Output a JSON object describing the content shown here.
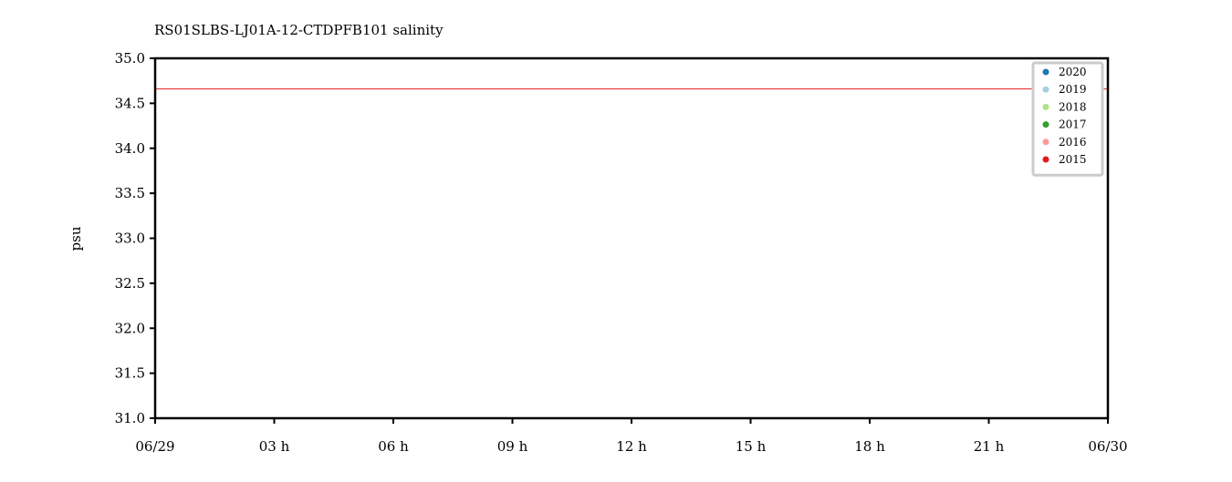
{
  "chart_data": {
    "type": "line",
    "title": "RS01SLBS-LJ01A-12-CTDPFB101 salinity",
    "xlabel": "",
    "ylabel": "psu",
    "x_range": [
      "06/29 00:00",
      "06/30 00:00"
    ],
    "x_ticks": [
      {
        "label": "06/29",
        "hour": 0
      },
      {
        "label": "03 h",
        "hour": 3
      },
      {
        "label": "06 h",
        "hour": 6
      },
      {
        "label": "09 h",
        "hour": 9
      },
      {
        "label": "12 h",
        "hour": 12
      },
      {
        "label": "15 h",
        "hour": 15
      },
      {
        "label": "18 h",
        "hour": 18
      },
      {
        "label": "21 h",
        "hour": 21
      },
      {
        "label": "06/30",
        "hour": 24
      }
    ],
    "ylim": [
      31.0,
      35.0
    ],
    "y_ticks": [
      "31.0",
      "31.5",
      "32.0",
      "32.5",
      "33.0",
      "33.5",
      "34.0",
      "34.5",
      "35.0"
    ],
    "grid": false,
    "legend_position": "top-right",
    "series": [
      {
        "name": "2020",
        "color": "#1f78b4",
        "points": []
      },
      {
        "name": "2019",
        "color": "#a6cee3",
        "points": []
      },
      {
        "name": "2018",
        "color": "#b2df8a",
        "points": []
      },
      {
        "name": "2017",
        "color": "#33a02c",
        "points": []
      },
      {
        "name": "2016",
        "color": "#fb9a99",
        "points": []
      },
      {
        "name": "2015",
        "color": "#e31a1c",
        "points": [
          {
            "hour": 0.0,
            "value": 34.66
          },
          {
            "hour": 3.0,
            "value": 34.66
          },
          {
            "hour": 6.0,
            "value": 34.66
          },
          {
            "hour": 9.0,
            "value": 34.66
          },
          {
            "hour": 12.0,
            "value": 34.66
          },
          {
            "hour": 15.0,
            "value": 34.66
          },
          {
            "hour": 18.0,
            "value": 34.66
          },
          {
            "hour": 21.0,
            "value": 34.66
          },
          {
            "hour": 24.0,
            "value": 34.66
          }
        ]
      }
    ]
  }
}
